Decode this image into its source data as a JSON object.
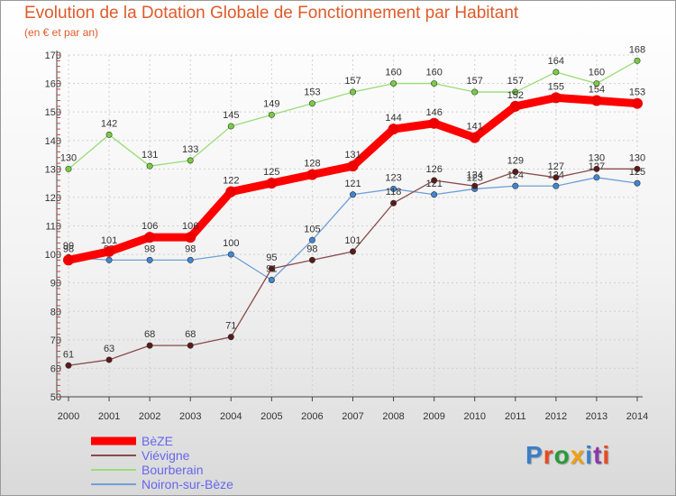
{
  "title": "Evolution de la Dotation Globale de Fonctionnement par Habitant",
  "subtitle": "(en € et par an)",
  "brand": {
    "text": "Proxiti",
    "letter_colors": [
      "#3a7fc8",
      "#e84a1e",
      "#2a9a3a",
      "#f0a010",
      "#3a7fc8",
      "#8a3aa8",
      "#e84a1e"
    ]
  },
  "chart_data": {
    "type": "line",
    "x": [
      "2000",
      "2001",
      "2002",
      "2003",
      "2004",
      "2005",
      "2006",
      "2007",
      "2008",
      "2009",
      "2010",
      "2011",
      "2012",
      "2013",
      "2014"
    ],
    "ylim": [
      50,
      170
    ],
    "yticks": [
      50,
      60,
      70,
      80,
      90,
      100,
      110,
      120,
      130,
      140,
      150,
      160,
      170
    ],
    "grid": true,
    "legend_placement": "bottom-left",
    "series": [
      {
        "name": "Noiron-sur-Bèze",
        "color": "#6f9fd8",
        "marker": "#3f86d4",
        "values": [
          99,
          98,
          98,
          98,
          100,
          91,
          105,
          121,
          123,
          121,
          123,
          124,
          124,
          127,
          125
        ]
      },
      {
        "name": "Bourberain",
        "color": "#99dd77",
        "marker": "#77cc44",
        "values": [
          130,
          142,
          131,
          133,
          145,
          149,
          153,
          157,
          160,
          160,
          157,
          157,
          164,
          160,
          168
        ]
      },
      {
        "name": "Viévigne",
        "color": "#8a4a4a",
        "marker": "#5a1a1a",
        "values": [
          61,
          63,
          68,
          68,
          71,
          95,
          98,
          101,
          118,
          126,
          124,
          129,
          127,
          130,
          130
        ]
      },
      {
        "name": "BèZE",
        "color": "#ff0000",
        "marker": "#ee0000",
        "values": [
          98,
          101,
          106,
          106,
          122,
          125,
          128,
          131,
          144,
          146,
          141,
          152,
          155,
          154,
          153
        ]
      }
    ]
  }
}
